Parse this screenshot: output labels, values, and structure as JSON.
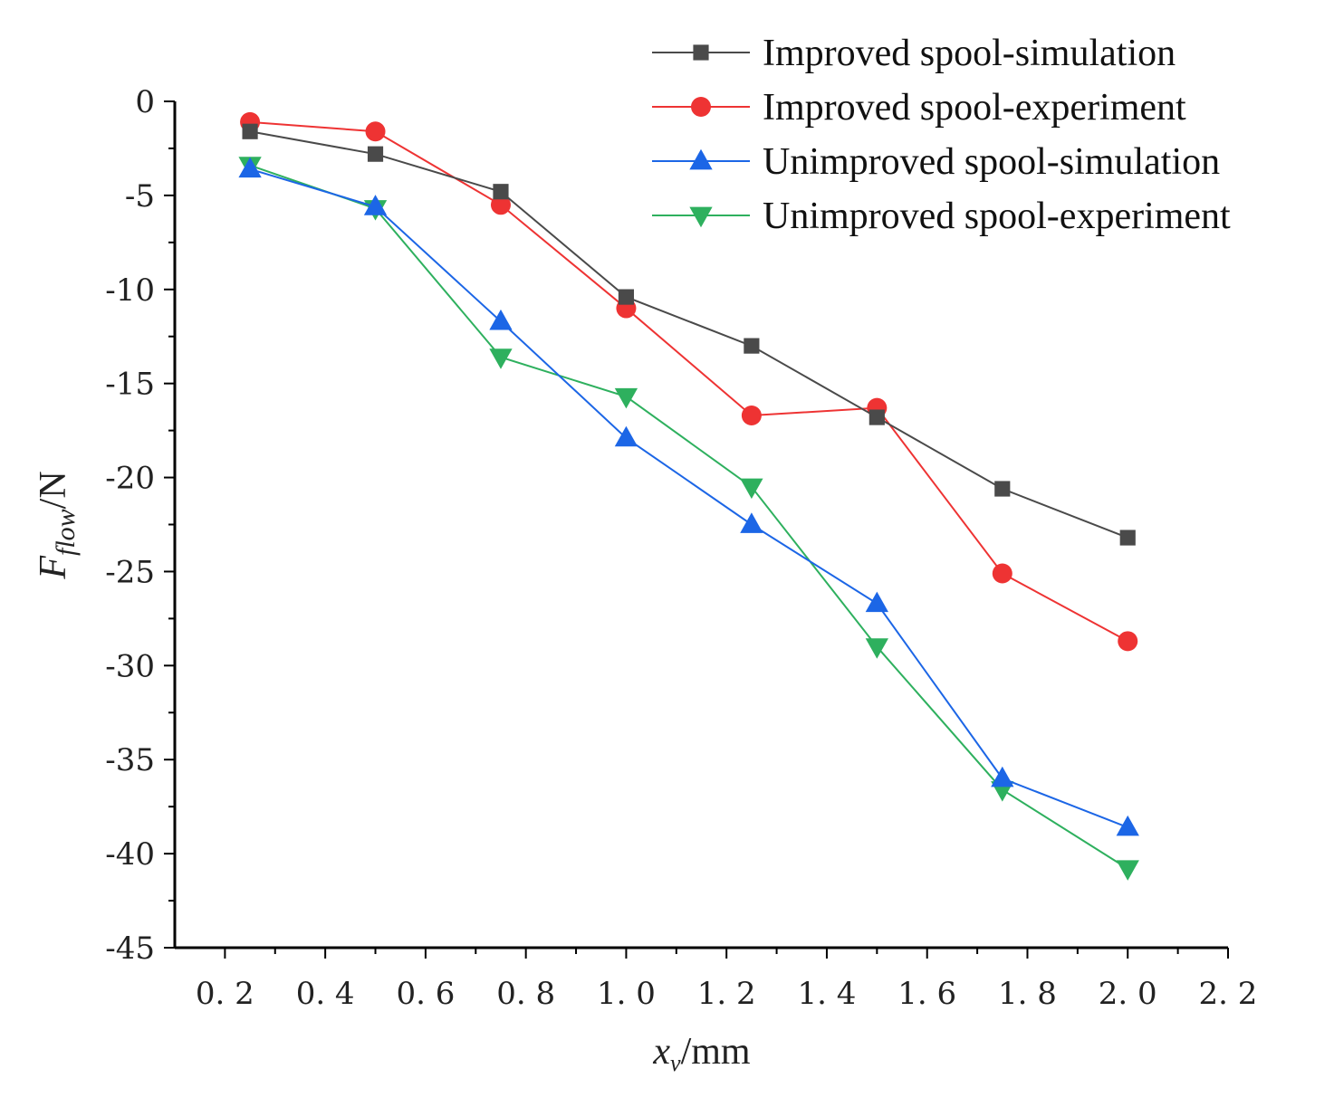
{
  "chart_data": {
    "type": "line",
    "title": "",
    "xlabel": {
      "main": "x",
      "sub": "v",
      "unit": "/mm"
    },
    "ylabel": {
      "main": "F",
      "sub": "flow",
      "unit": "/N"
    },
    "xlim": [
      0.1,
      2.2
    ],
    "ylim": [
      -45,
      0
    ],
    "x_ticks": [
      0.2,
      0.4,
      0.6,
      0.8,
      1.0,
      1.2,
      1.4,
      1.6,
      1.8,
      2.0,
      2.2
    ],
    "x_tick_labels": [
      "0. 2",
      "0. 4",
      "0. 6",
      "0. 8",
      "1. 0",
      "1. 2",
      "1. 4",
      "1. 6",
      "1. 8",
      "2. 0",
      "2. 2"
    ],
    "y_ticks": [
      0,
      -5,
      -10,
      -15,
      -20,
      -25,
      -30,
      -35,
      -40,
      -45
    ],
    "y_tick_labels": [
      "0",
      "-5",
      "-10",
      "-15",
      "-20",
      "-25",
      "-30",
      "-35",
      "-40",
      "-45"
    ],
    "grid": false,
    "legend_position": "top-right",
    "x": [
      0.25,
      0.5,
      0.75,
      1.0,
      1.25,
      1.5,
      1.75,
      2.0
    ],
    "series": [
      {
        "name": "Improved spool-simulation",
        "marker": "square",
        "color": "#4a4a4a",
        "values": [
          -1.6,
          -2.8,
          -4.8,
          -10.4,
          -13.0,
          -16.8,
          -20.6,
          -23.2
        ]
      },
      {
        "name": "Improved spool-experiment",
        "marker": "circle",
        "color": "#ee3333",
        "values": [
          -1.1,
          -1.6,
          -5.5,
          -11.0,
          -16.7,
          -16.3,
          -25.1,
          -28.7
        ]
      },
      {
        "name": "Unimproved spool-simulation",
        "marker": "triangle-up",
        "color": "#1c66e6",
        "values": [
          -3.6,
          -5.6,
          -11.7,
          -17.9,
          -22.5,
          -26.7,
          -36.0,
          -38.6
        ]
      },
      {
        "name": "Unimproved spool-experiment",
        "marker": "triangle-down",
        "color": "#2eb05e",
        "values": [
          -3.4,
          -5.7,
          -13.6,
          -15.7,
          -20.5,
          -29.0,
          -36.6,
          -40.8
        ]
      }
    ]
  }
}
